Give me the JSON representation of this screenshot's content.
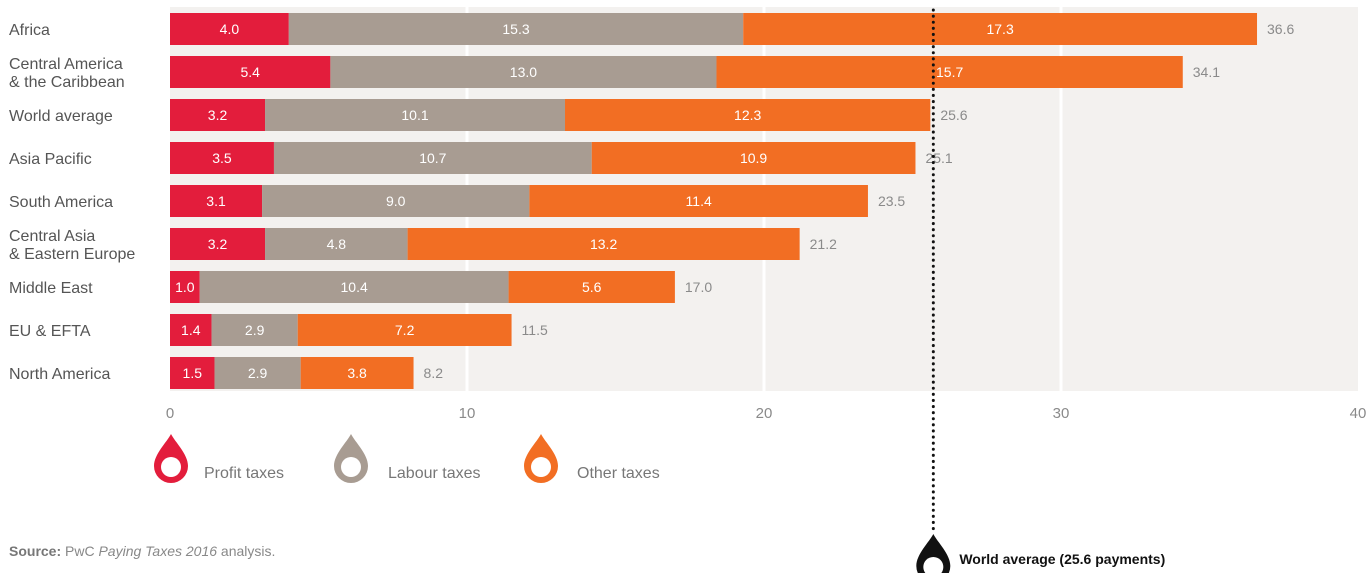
{
  "chart_data": {
    "type": "bar",
    "orientation": "horizontal",
    "stacked": true,
    "categories": [
      [
        "Africa"
      ],
      [
        "Central America",
        "& the Caribbean"
      ],
      [
        "World average"
      ],
      [
        "Asia Pacific"
      ],
      [
        "South America"
      ],
      [
        "Central Asia",
        "& Eastern Europe"
      ],
      [
        "Middle East"
      ],
      [
        "EU & EFTA"
      ],
      [
        "North America"
      ]
    ],
    "series": [
      {
        "name": "Profit taxes",
        "color": "#e31d3c",
        "values": [
          4.0,
          5.4,
          3.2,
          3.5,
          3.1,
          3.2,
          1.0,
          1.4,
          1.5
        ]
      },
      {
        "name": "Labour taxes",
        "color": "#a89c92",
        "values": [
          15.3,
          13.0,
          10.1,
          10.7,
          9.0,
          4.8,
          10.4,
          2.9,
          2.9
        ]
      },
      {
        "name": "Other taxes",
        "color": "#f26e23",
        "values": [
          17.3,
          15.7,
          12.3,
          10.9,
          11.4,
          13.2,
          5.6,
          7.2,
          3.8
        ]
      }
    ],
    "totals": [
      36.6,
      34.1,
      25.6,
      25.1,
      23.5,
      21.2,
      17.0,
      11.5,
      8.2
    ],
    "xlim": [
      0,
      40
    ],
    "xticks": [
      0,
      10,
      20,
      30,
      40
    ],
    "reference_line": {
      "value": 25.6,
      "label": "World average (25.6 payments)"
    },
    "legend_placement": "bottom-left",
    "background": "#f3f1ef"
  },
  "source": {
    "prefix": "Source:",
    "pre": " PwC ",
    "title": "Paying Taxes 2016",
    "post": " analysis."
  }
}
